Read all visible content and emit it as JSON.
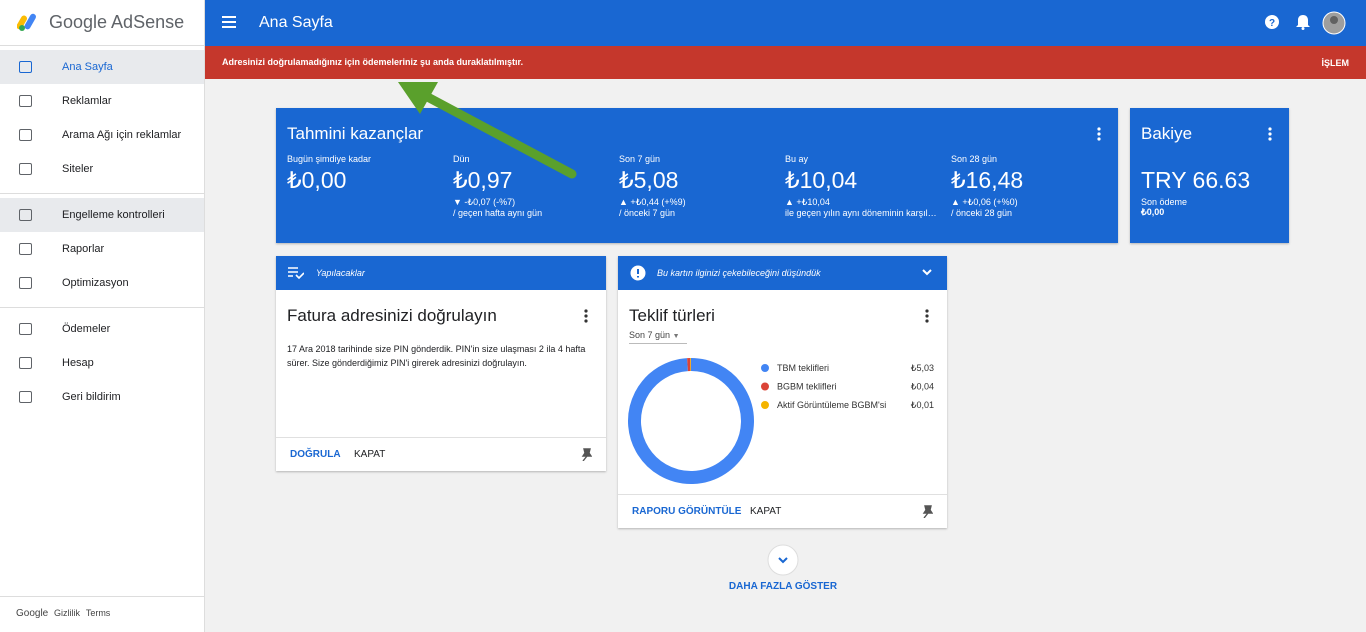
{
  "sidebar": {
    "logo": "Google AdSense",
    "nav": [
      "Ana Sayfa",
      "Reklamlar",
      "Arama Ağı için reklamlar",
      "Siteler",
      "Engelleme kontrolleri",
      "Raporlar",
      "Optimizasyon",
      "Ödemeler",
      "Hesap",
      "Geri bildirim"
    ],
    "footer": [
      "Google",
      "Gizlilik",
      "Terms"
    ]
  },
  "topbar": {
    "title": "Ana Sayfa"
  },
  "banner": {
    "message": "Adresinizi doğrulamadığınız için ödemeleriniz şu anda duraklatılmıştır.",
    "action": "İŞLEM"
  },
  "earnings": {
    "title": "Tahmini kazançlar",
    "stats": [
      {
        "label": "Bugün şimdiye kadar",
        "value": "₺0,00"
      },
      {
        "label": "Dün",
        "value": "₺0,97",
        "change": "▼ -₺0,07 (-%7)",
        "compare": "/ geçen hafta aynı gün"
      },
      {
        "label": "Son 7 gün",
        "value": "₺5,08",
        "change": "▲ +₺0,44 (+%9)",
        "compare": "/ önceki 7 gün"
      },
      {
        "label": "Bu ay",
        "value": "₺10,04",
        "change": "▲ +₺10,04",
        "compare": "ile geçen yılın aynı döneminin karşıl…"
      },
      {
        "label": "Son 28 gün",
        "value": "₺16,48",
        "change": "▲ +₺0,06 (+%0)",
        "compare": "/ önceki 28 gün"
      }
    ]
  },
  "balance": {
    "title": "Bakiye",
    "value": "TRY 66.63",
    "label": "Son ödeme",
    "amount": "₺0,00"
  },
  "todo_card": {
    "header": "Yapılacaklar",
    "title": "Fatura adresinizi doğrulayın",
    "body": "17 Ara 2018 tarihinde size PIN gönderdik. PIN'in size ulaşması 2 ila 4 hafta sürer. Size gönderdiğimiz PIN'i girerek adresinizi doğrulayın.",
    "actions": [
      "DOĞRULA",
      "KAPAT"
    ]
  },
  "offer_card": {
    "header": "Bu kartın ilginizi çekebileceğini düşündük",
    "title": "Teklif türleri",
    "period": "Son 7 gün",
    "donut": {
      "series": [
        {
          "name": "TBM teklifleri",
          "color": "#4285f4",
          "value": {
            "value": 5.03,
            "label": "₺5,03"
          }
        },
        {
          "name": "BGBM teklifleri",
          "color": "#db4437",
          "value": {
            "value": 0.04,
            "label": "₺0,04"
          }
        },
        {
          "name": "Aktif Görüntüleme BGBM'si",
          "color": "#f4b400",
          "value": {
            "value": 0.01,
            "label": "₺0,01"
          }
        }
      ]
    },
    "actions": [
      "RAPORU GÖRÜNTÜLE",
      "KAPAT"
    ]
  },
  "more": "DAHA FAZLA GÖSTER"
}
